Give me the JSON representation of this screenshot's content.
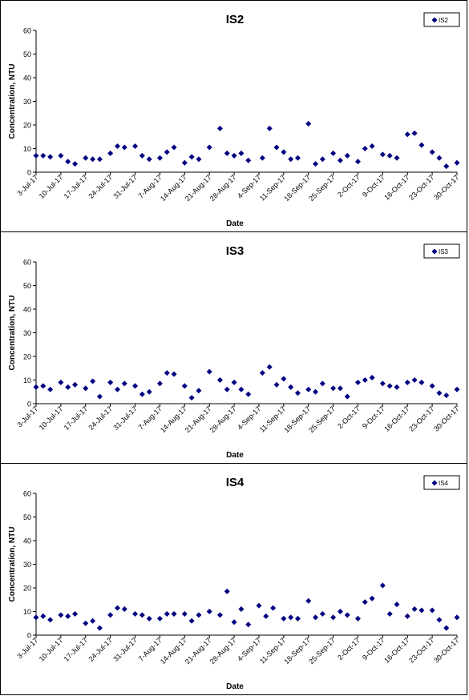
{
  "chart_data": [
    {
      "type": "scatter",
      "title": "IS2",
      "ylabel": "Concentration, NTU",
      "xlabel": "Date",
      "ylim": [
        0,
        60
      ],
      "yticks": [
        "0",
        "10",
        "20",
        "30",
        "40",
        "50",
        "60"
      ],
      "xticks": [
        "3-Jul-17",
        "10-Jul-17",
        "17-Jul-17",
        "24-Jul-17",
        "31-Jul-17",
        "7-Aug-17",
        "14-Aug-17",
        "21-Aug-17",
        "28-Aug-17",
        "4-Sep-17",
        "11-Sep-17",
        "18-Sep-17",
        "25-Sep-17",
        "2-Oct-17",
        "9-Oct-17",
        "16-Oct-17",
        "23-Oct-17",
        "30-Oct-17"
      ],
      "legend": "top-right",
      "color": "#000080",
      "series": [
        {
          "name": "IS2",
          "x": [
            "2017-07-03",
            "2017-07-05",
            "2017-07-07",
            "2017-07-10",
            "2017-07-12",
            "2017-07-14",
            "2017-07-17",
            "2017-07-19",
            "2017-07-21",
            "2017-07-24",
            "2017-07-26",
            "2017-07-28",
            "2017-07-31",
            "2017-08-02",
            "2017-08-04",
            "2017-08-07",
            "2017-08-09",
            "2017-08-11",
            "2017-08-14",
            "2017-08-16",
            "2017-08-18",
            "2017-08-21",
            "2017-08-24",
            "2017-08-26",
            "2017-08-28",
            "2017-08-30",
            "2017-09-01",
            "2017-09-05",
            "2017-09-07",
            "2017-09-09",
            "2017-09-11",
            "2017-09-13",
            "2017-09-15",
            "2017-09-18",
            "2017-09-20",
            "2017-09-22",
            "2017-09-25",
            "2017-09-27",
            "2017-09-29",
            "2017-10-02",
            "2017-10-04",
            "2017-10-06",
            "2017-10-09",
            "2017-10-11",
            "2017-10-13",
            "2017-10-16",
            "2017-10-18",
            "2017-10-20",
            "2017-10-23",
            "2017-10-25",
            "2017-10-27",
            "2017-10-30"
          ],
          "y": [
            7,
            7,
            6.5,
            7,
            4.5,
            3.5,
            6,
            5.5,
            5.5,
            8,
            11,
            10.5,
            11,
            7,
            5.5,
            6,
            8.5,
            10.5,
            4,
            6.5,
            5.5,
            10.5,
            18.5,
            8,
            7,
            8,
            5,
            6,
            18.5,
            10.5,
            8.5,
            5.5,
            6,
            20.5,
            3.5,
            5.5,
            8,
            5,
            7,
            4.5,
            10,
            11,
            7.5,
            7,
            6,
            16,
            16.5,
            11.5,
            8.5,
            6,
            2.5,
            4
          ]
        }
      ]
    },
    {
      "type": "scatter",
      "title": "IS3",
      "ylabel": "Concentration, NTU",
      "xlabel": "Date",
      "ylim": [
        0,
        60
      ],
      "yticks": [
        "0",
        "10",
        "20",
        "30",
        "40",
        "50",
        "60"
      ],
      "xticks": [
        "3-Jul-17",
        "10-Jul-17",
        "17-Jul-17",
        "24-Jul-17",
        "31-Jul-17",
        "7-Aug-17",
        "14-Aug-17",
        "21-Aug-17",
        "28-Aug-17",
        "4-Sep-17",
        "11-Sep-17",
        "18-Sep-17",
        "25-Sep-17",
        "2-Oct-17",
        "9-Oct-17",
        "16-Oct-17",
        "23-Oct-17",
        "30-Oct-17"
      ],
      "legend": "top-right",
      "color": "#000080",
      "series": [
        {
          "name": "IS3",
          "x": [
            "2017-07-03",
            "2017-07-05",
            "2017-07-07",
            "2017-07-10",
            "2017-07-12",
            "2017-07-14",
            "2017-07-17",
            "2017-07-19",
            "2017-07-21",
            "2017-07-24",
            "2017-07-26",
            "2017-07-28",
            "2017-07-31",
            "2017-08-02",
            "2017-08-04",
            "2017-08-07",
            "2017-08-09",
            "2017-08-11",
            "2017-08-14",
            "2017-08-16",
            "2017-08-18",
            "2017-08-21",
            "2017-08-24",
            "2017-08-26",
            "2017-08-28",
            "2017-08-30",
            "2017-09-01",
            "2017-09-05",
            "2017-09-07",
            "2017-09-09",
            "2017-09-11",
            "2017-09-13",
            "2017-09-15",
            "2017-09-18",
            "2017-09-20",
            "2017-09-22",
            "2017-09-25",
            "2017-09-27",
            "2017-09-29",
            "2017-10-02",
            "2017-10-04",
            "2017-10-06",
            "2017-10-09",
            "2017-10-11",
            "2017-10-13",
            "2017-10-16",
            "2017-10-18",
            "2017-10-20",
            "2017-10-23",
            "2017-10-25",
            "2017-10-27",
            "2017-10-30"
          ],
          "y": [
            7,
            7.5,
            6,
            9,
            7,
            8,
            6.5,
            9.5,
            3,
            9,
            6,
            8.5,
            7.5,
            4,
            5,
            8.5,
            13,
            12.5,
            7.5,
            2.5,
            5.5,
            13.5,
            10,
            6,
            9,
            6,
            4,
            13,
            15.5,
            8,
            10.5,
            7,
            4.5,
            6,
            5,
            8.5,
            6.5,
            6.5,
            3,
            9,
            10,
            11,
            8.5,
            7.5,
            7,
            9,
            10,
            9,
            7.5,
            4.5,
            3.5,
            6
          ]
        }
      ]
    },
    {
      "type": "scatter",
      "title": "IS4",
      "ylabel": "Concentration, NTU",
      "xlabel": "Date",
      "ylim": [
        0,
        60
      ],
      "yticks": [
        "0",
        "10",
        "20",
        "30",
        "40",
        "50",
        "60"
      ],
      "xticks": [
        "3-Jul-17",
        "10-Jul-17",
        "17-Jul-17",
        "24-Jul-17",
        "31-Jul-17",
        "7-Aug-17",
        "14-Aug-17",
        "21-Aug-17",
        "28-Aug-17",
        "4-Sep-17",
        "11-Sep-17",
        "18-Sep-17",
        "25-Sep-17",
        "2-Oct-17",
        "9-Oct-17",
        "16-Oct-17",
        "23-Oct-17",
        "30-Oct-17"
      ],
      "legend": "top-right",
      "color": "#000080",
      "series": [
        {
          "name": "IS4",
          "x": [
            "2017-07-03",
            "2017-07-05",
            "2017-07-07",
            "2017-07-10",
            "2017-07-12",
            "2017-07-14",
            "2017-07-17",
            "2017-07-19",
            "2017-07-21",
            "2017-07-24",
            "2017-07-26",
            "2017-07-28",
            "2017-07-31",
            "2017-08-02",
            "2017-08-04",
            "2017-08-07",
            "2017-08-09",
            "2017-08-11",
            "2017-08-14",
            "2017-08-16",
            "2017-08-18",
            "2017-08-21",
            "2017-08-24",
            "2017-08-26",
            "2017-08-28",
            "2017-08-30",
            "2017-09-01",
            "2017-09-04",
            "2017-09-06",
            "2017-09-08",
            "2017-09-11",
            "2017-09-13",
            "2017-09-15",
            "2017-09-18",
            "2017-09-20",
            "2017-09-22",
            "2017-09-25",
            "2017-09-27",
            "2017-09-29",
            "2017-10-02",
            "2017-10-04",
            "2017-10-06",
            "2017-10-09",
            "2017-10-11",
            "2017-10-13",
            "2017-10-16",
            "2017-10-18",
            "2017-10-20",
            "2017-10-23",
            "2017-10-25",
            "2017-10-27",
            "2017-10-30"
          ],
          "y": [
            7.5,
            8,
            6.5,
            8.5,
            8,
            9,
            5,
            6,
            3,
            8.5,
            11.5,
            11,
            9,
            8.5,
            7,
            7,
            9,
            9,
            9,
            6,
            8.5,
            10,
            8.5,
            18.5,
            5.5,
            11,
            4.5,
            12.5,
            8,
            11.5,
            7,
            7.5,
            7,
            14.5,
            7.5,
            9,
            7.5,
            10,
            8.5,
            7,
            14,
            15.5,
            21,
            9,
            13,
            8,
            11,
            10.5,
            10.5,
            6.5,
            3,
            7.5
          ]
        }
      ]
    }
  ]
}
